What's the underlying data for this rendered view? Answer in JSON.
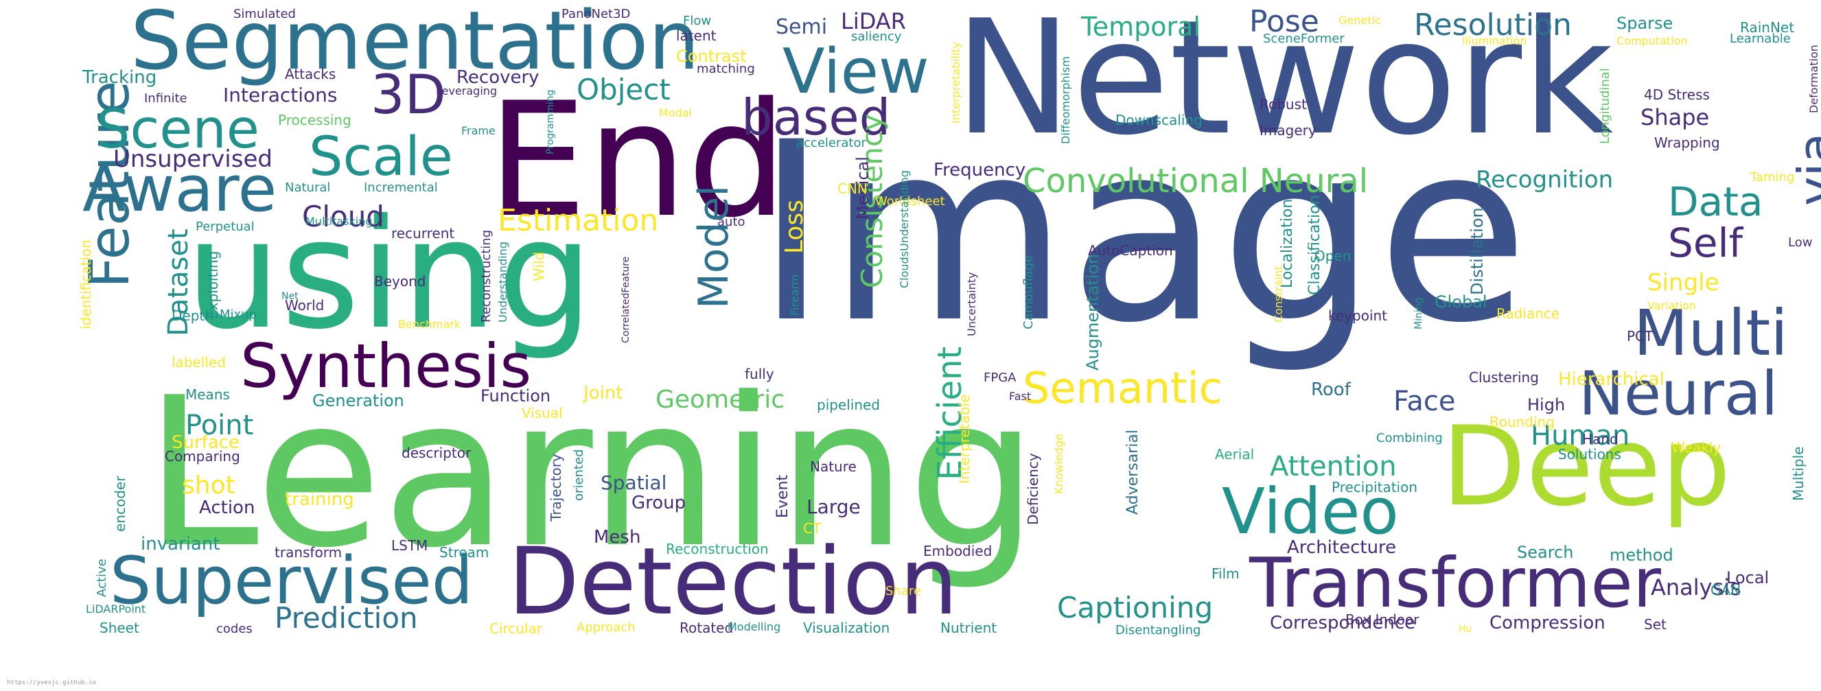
{
  "palette": {
    "dark_purple": "#440154",
    "indigo": "#472c7a",
    "slate_blue": "#3b528b",
    "teal_blue": "#2c728e",
    "teal": "#21918c",
    "sea_green": "#28ae80",
    "green": "#5ec962",
    "lime": "#addc30",
    "yellow": "#fde725"
  },
  "words": [
    {
      "text": "Image",
      "color": "#3b528b"
    },
    {
      "text": "Network",
      "color": "#3b528b"
    },
    {
      "text": "Learning",
      "color": "#5ec962"
    },
    {
      "text": "using",
      "color": "#28ae80"
    },
    {
      "text": "End",
      "color": "#440154"
    },
    {
      "text": "Deep",
      "color": "#addc30"
    },
    {
      "text": "Detection",
      "color": "#472c7a"
    },
    {
      "text": "Segmentation",
      "color": "#2c728e"
    },
    {
      "text": "Transformer",
      "color": "#472c7a"
    },
    {
      "text": "Supervised",
      "color": "#2c728e"
    },
    {
      "text": "Video",
      "color": "#21918c"
    },
    {
      "text": "Synthesis",
      "color": "#440154"
    },
    {
      "text": "View",
      "color": "#2c728e"
    },
    {
      "text": "Aware",
      "color": "#2c728e"
    },
    {
      "text": "Multi",
      "color": "#3b528b"
    },
    {
      "text": "Neural",
      "color": "#3b528b"
    },
    {
      "text": "Feature",
      "color": "#2c728e"
    },
    {
      "text": "based",
      "color": "#472c7a"
    },
    {
      "text": "Scale",
      "color": "#21918c"
    },
    {
      "text": "Scene",
      "color": "#21918c"
    },
    {
      "text": "3D",
      "color": "#472c7a"
    },
    {
      "text": "via",
      "color": "#3b528b"
    },
    {
      "text": "Semantic",
      "color": "#fde725"
    },
    {
      "text": "Model",
      "color": "#2c728e"
    },
    {
      "text": "Data",
      "color": "#21918c"
    },
    {
      "text": "Self",
      "color": "#472c7a"
    },
    {
      "text": "Efficient",
      "color": "#28ae80"
    },
    {
      "text": "Convolutional Neural",
      "color": "#5ec962"
    },
    {
      "text": "Consistency",
      "color": "#5ec962"
    },
    {
      "text": "Object",
      "color": "#21918c"
    },
    {
      "text": "Estimation",
      "color": "#fde725"
    },
    {
      "text": "Cloud",
      "color": "#472c7a"
    },
    {
      "text": "Pose",
      "color": "#3b528b"
    },
    {
      "text": "Resolution",
      "color": "#2c728e"
    },
    {
      "text": "Captioning",
      "color": "#21918c"
    },
    {
      "text": "Prediction",
      "color": "#2c728e"
    },
    {
      "text": "Dataset",
      "color": "#21918c"
    },
    {
      "text": "Point",
      "color": "#21918c"
    },
    {
      "text": "Attention",
      "color": "#28ae80"
    },
    {
      "text": "Human",
      "color": "#21918c"
    },
    {
      "text": "Face",
      "color": "#3b528b"
    },
    {
      "text": "Geometric",
      "color": "#5ec962"
    },
    {
      "text": "Loss",
      "color": "#fde725"
    },
    {
      "text": "Temporal",
      "color": "#28ae80"
    },
    {
      "text": "Recognition",
      "color": "#21918c"
    },
    {
      "text": "Single",
      "color": "#fde725"
    },
    {
      "text": "Unsupervised",
      "color": "#472c7a"
    },
    {
      "text": "Analysis",
      "color": "#472c7a"
    },
    {
      "text": "shot",
      "color": "#fde725"
    },
    {
      "text": "Shape",
      "color": "#472c7a"
    },
    {
      "text": "LiDAR",
      "color": "#472c7a"
    },
    {
      "text": "Semi",
      "color": "#3b528b"
    },
    {
      "text": "Interactions",
      "color": "#472c7a"
    },
    {
      "text": "Recovery",
      "color": "#472c7a"
    },
    {
      "text": "Frequency",
      "color": "#472c7a"
    },
    {
      "text": "Architecture",
      "color": "#472c7a"
    },
    {
      "text": "Augmentation",
      "color": "#21918c"
    },
    {
      "text": "Correspondence",
      "color": "#472c7a"
    },
    {
      "text": "Compression",
      "color": "#472c7a"
    },
    {
      "text": "Tracking",
      "color": "#21918c"
    },
    {
      "text": "Hierarchical",
      "color": "#fde725"
    },
    {
      "text": "Spatial",
      "color": "#3b528b"
    },
    {
      "text": "Group",
      "color": "#472c7a"
    },
    {
      "text": "Large",
      "color": "#472c7a"
    },
    {
      "text": "Mesh",
      "color": "#472c7a"
    },
    {
      "text": "Action",
      "color": "#472c7a"
    },
    {
      "text": "Generation",
      "color": "#21918c"
    },
    {
      "text": "Function",
      "color": "#472c7a"
    },
    {
      "text": "Joint",
      "color": "#fde725"
    },
    {
      "text": "Surface",
      "color": "#fde725"
    },
    {
      "text": "training",
      "color": "#fde725"
    },
    {
      "text": "invariant",
      "color": "#21918c"
    },
    {
      "text": "Adversarial",
      "color": "#2c728e"
    },
    {
      "text": "Roof",
      "color": "#2c728e"
    },
    {
      "text": "Distillation",
      "color": "#2c728e"
    },
    {
      "text": "Localization",
      "color": "#21918c"
    },
    {
      "text": "Classification",
      "color": "#21918c"
    },
    {
      "text": "Medical",
      "color": "#472c7a"
    },
    {
      "text": "Event",
      "color": "#472c7a"
    },
    {
      "text": "Search",
      "color": "#21918c"
    },
    {
      "text": "method",
      "color": "#21918c"
    },
    {
      "text": "Local",
      "color": "#472c7a"
    },
    {
      "text": "High",
      "color": "#472c7a"
    },
    {
      "text": "Global",
      "color": "#21918c"
    },
    {
      "text": "Sparse",
      "color": "#21918c"
    },
    {
      "text": "Contrast",
      "color": "#fde725"
    },
    {
      "text": "Visualization",
      "color": "#21918c"
    },
    {
      "text": "Rotated",
      "color": "#472c7a"
    },
    {
      "text": "Nutrient",
      "color": "#21918c"
    },
    {
      "text": "Reconstruction",
      "color": "#28ae80"
    },
    {
      "text": "Stream",
      "color": "#21918c"
    },
    {
      "text": "LSTM",
      "color": "#472c7a"
    },
    {
      "text": "transform",
      "color": "#472c7a"
    },
    {
      "text": "encoder",
      "color": "#21918c"
    },
    {
      "text": "Comparing",
      "color": "#472c7a"
    },
    {
      "text": "descriptor",
      "color": "#472c7a"
    },
    {
      "text": "Trajectory",
      "color": "#3b528b"
    },
    {
      "text": "oriented",
      "color": "#21918c"
    },
    {
      "text": "Nature",
      "color": "#472c7a"
    },
    {
      "text": "Interpretable",
      "color": "#fde725"
    },
    {
      "text": "Deficiency",
      "color": "#472c7a"
    },
    {
      "text": "Knowledge",
      "color": "#fde725"
    },
    {
      "text": "Embodied",
      "color": "#472c7a"
    },
    {
      "text": "Box Indoor",
      "color": "#472c7a"
    },
    {
      "text": "Film",
      "color": "#21918c"
    },
    {
      "text": "Precipitation",
      "color": "#21918c"
    },
    {
      "text": "Aerial",
      "color": "#28ae80"
    },
    {
      "text": "Bounding",
      "color": "#fde725"
    },
    {
      "text": "Solutions",
      "color": "#21918c"
    },
    {
      "text": "Hand",
      "color": "#472c7a"
    },
    {
      "text": "Weakly",
      "color": "#fde725"
    },
    {
      "text": "Multiple",
      "color": "#21918c"
    },
    {
      "text": "GAN",
      "color": "#21918c"
    },
    {
      "text": "Clustering",
      "color": "#472c7a"
    },
    {
      "text": "PCT",
      "color": "#472c7a"
    },
    {
      "text": "Radiance",
      "color": "#fde725"
    },
    {
      "text": "Variation",
      "color": "#fde725"
    },
    {
      "text": "Low",
      "color": "#472c7a"
    },
    {
      "text": "Taming",
      "color": "#fde725"
    },
    {
      "text": "Deformation",
      "color": "#472c7a"
    },
    {
      "text": "Wrapping",
      "color": "#472c7a"
    },
    {
      "text": "4D Stress",
      "color": "#472c7a"
    },
    {
      "text": "Longitudinal",
      "color": "#5ec962"
    },
    {
      "text": "RainNet",
      "color": "#21918c"
    },
    {
      "text": "Learnable",
      "color": "#21918c"
    },
    {
      "text": "Computation",
      "color": "#fde725"
    },
    {
      "text": "Illumination",
      "color": "#fde725"
    },
    {
      "text": "Genetic",
      "color": "#fde725"
    },
    {
      "text": "SceneFormer",
      "color": "#21918c"
    },
    {
      "text": "Robust",
      "color": "#472c7a"
    },
    {
      "text": "Imagery",
      "color": "#472c7a"
    },
    {
      "text": "Downscaling",
      "color": "#21918c"
    },
    {
      "text": "Diffeomorphism",
      "color": "#21918c"
    },
    {
      "text": "Interpretability",
      "color": "#fde725"
    },
    {
      "text": "saliency",
      "color": "#21918c"
    },
    {
      "text": "accelerator",
      "color": "#21918c"
    },
    {
      "text": "Worldsheet",
      "color": "#fde725"
    },
    {
      "text": "CNN",
      "color": "#fde725"
    },
    {
      "text": "Camouflage",
      "color": "#21918c"
    },
    {
      "text": "AutoCaption",
      "color": "#472c7a"
    },
    {
      "text": "Open",
      "color": "#21918c"
    },
    {
      "text": "keypoint",
      "color": "#472c7a"
    },
    {
      "text": "Mining",
      "color": "#21918c"
    },
    {
      "text": "Constraint",
      "color": "#fde725"
    },
    {
      "text": "FPGA",
      "color": "#472c7a"
    },
    {
      "text": "Fast",
      "color": "#472c7a"
    },
    {
      "text": "pipelined",
      "color": "#21918c"
    },
    {
      "text": "fully",
      "color": "#472c7a"
    },
    {
      "text": "Uncertainty",
      "color": "#472c7a"
    },
    {
      "text": "CloudsUnderstanding",
      "color": "#21918c"
    },
    {
      "text": "Firearm",
      "color": "#21918c"
    },
    {
      "text": "auto",
      "color": "#472c7a"
    },
    {
      "text": "Flow",
      "color": "#21918c"
    },
    {
      "text": "latent",
      "color": "#472c7a"
    },
    {
      "text": "matching",
      "color": "#472c7a"
    },
    {
      "text": "Modal",
      "color": "#fde725"
    },
    {
      "text": "Programming",
      "color": "#21918c"
    },
    {
      "text": "Frame",
      "color": "#21918c"
    },
    {
      "text": "Incremental",
      "color": "#21918c"
    },
    {
      "text": "Natural",
      "color": "#21918c"
    },
    {
      "text": "recurrent",
      "color": "#472c7a"
    },
    {
      "text": "Multitasking",
      "color": "#21918c"
    },
    {
      "text": "Perpetual",
      "color": "#21918c"
    },
    {
      "text": "Net",
      "color": "#21918c"
    },
    {
      "text": "Mixup",
      "color": "#21918c"
    },
    {
      "text": "World",
      "color": "#472c7a"
    },
    {
      "text": "Beyond",
      "color": "#472c7a"
    },
    {
      "text": "Exploiting",
      "color": "#21918c"
    },
    {
      "text": "Depth",
      "color": "#21918c"
    },
    {
      "text": "labelled",
      "color": "#fde725"
    },
    {
      "text": "Means",
      "color": "#21918c"
    },
    {
      "text": "identification",
      "color": "#fde725"
    },
    {
      "text": "Benchmark",
      "color": "#fde725"
    },
    {
      "text": "Reconstructing",
      "color": "#472c7a"
    },
    {
      "text": "Understanding",
      "color": "#21918c"
    },
    {
      "text": "Wild",
      "color": "#fde725"
    },
    {
      "text": "CorrelatedFeature",
      "color": "#472c7a"
    },
    {
      "text": "Processing",
      "color": "#5ec962"
    },
    {
      "text": "Leveraging",
      "color": "#472c7a"
    },
    {
      "text": "Infinite",
      "color": "#472c7a"
    },
    {
      "text": "Attacks",
      "color": "#472c7a"
    },
    {
      "text": "Simulated",
      "color": "#472c7a"
    },
    {
      "text": "PanoNet3D",
      "color": "#472c7a"
    },
    {
      "text": "Visual",
      "color": "#fde725"
    },
    {
      "text": "Circular",
      "color": "#fde725"
    },
    {
      "text": "Approach",
      "color": "#fde725"
    },
    {
      "text": "Modelling",
      "color": "#21918c"
    },
    {
      "text": "CT",
      "color": "#fde725"
    },
    {
      "text": "Share",
      "color": "#fde725"
    },
    {
      "text": "Disentangling",
      "color": "#21918c"
    },
    {
      "text": "Set",
      "color": "#472c7a"
    },
    {
      "text": "Hu",
      "color": "#fde725"
    },
    {
      "text": "Combining",
      "color": "#21918c"
    },
    {
      "text": "codes",
      "color": "#472c7a"
    },
    {
      "text": "Sheet",
      "color": "#21918c"
    },
    {
      "text": "LiDARPoint",
      "color": "#21918c"
    },
    {
      "text": "Active",
      "color": "#21918c"
    }
  ],
  "footer": {
    "url": "https://yvesjc.github.io"
  }
}
